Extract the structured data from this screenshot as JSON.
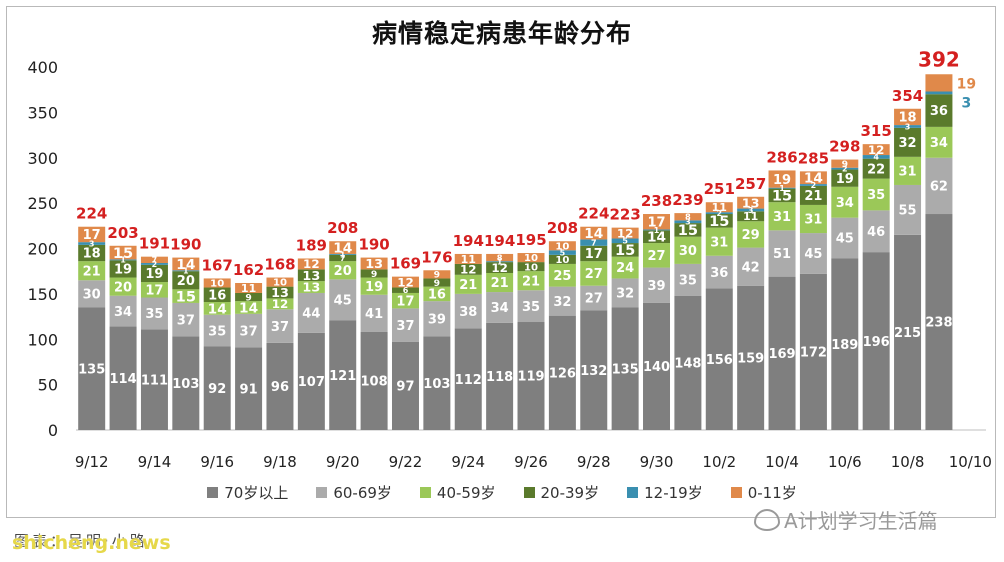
{
  "chart_data": {
    "type": "bar",
    "stacked": true,
    "title": "病情稳定病患年龄分布",
    "categories": [
      "9/12",
      "9/13",
      "9/14",
      "9/15",
      "9/16",
      "9/17",
      "9/18",
      "9/19",
      "9/20",
      "9/21",
      "9/22",
      "9/23",
      "9/24",
      "9/25",
      "9/26",
      "9/27",
      "9/28",
      "9/29",
      "9/30",
      "10/1",
      "10/2",
      "10/3",
      "10/4",
      "10/5",
      "10/6",
      "10/7",
      "10/8",
      "10/9",
      "10/10"
    ],
    "x_tick_labels": [
      "9/12",
      "9/14",
      "9/16",
      "9/18",
      "9/20",
      "9/22",
      "9/24",
      "9/26",
      "9/28",
      "9/30",
      "10/2",
      "10/4",
      "10/6",
      "10/8",
      "10/10"
    ],
    "ylim": [
      0,
      400
    ],
    "yticks": [
      0,
      50,
      100,
      150,
      200,
      250,
      300,
      350,
      400
    ],
    "grid": false,
    "legend_position": "bottom",
    "totals": [
      224,
      203,
      191,
      190,
      167,
      162,
      168,
      189,
      208,
      190,
      169,
      176,
      194,
      194,
      195,
      208,
      224,
      223,
      238,
      239,
      251,
      257,
      286,
      285,
      298,
      315,
      354,
      392,
      null
    ],
    "series": [
      {
        "name": "70岁以上",
        "color": "#7f7f7f",
        "label_color": "#ffffff",
        "values": [
          135,
          114,
          111,
          103,
          92,
          91,
          96,
          107,
          121,
          108,
          97,
          103,
          112,
          118,
          119,
          126,
          132,
          135,
          140,
          148,
          156,
          159,
          169,
          172,
          189,
          196,
          215,
          238,
          null
        ]
      },
      {
        "name": "60-69岁",
        "color": "#ababab",
        "label_color": "#ffffff",
        "values": [
          30,
          34,
          35,
          37,
          35,
          37,
          37,
          44,
          45,
          41,
          37,
          39,
          38,
          34,
          35,
          32,
          27,
          32,
          39,
          35,
          36,
          42,
          51,
          45,
          45,
          46,
          55,
          62,
          null
        ]
      },
      {
        "name": "40-59岁",
        "color": "#9bc858",
        "label_color": "#ffffff",
        "values": [
          21,
          20,
          17,
          15,
          14,
          14,
          12,
          13,
          20,
          19,
          17,
          16,
          21,
          21,
          21,
          25,
          27,
          24,
          27,
          30,
          31,
          29,
          31,
          31,
          34,
          35,
          31,
          34,
          null
        ]
      },
      {
        "name": "20-39岁",
        "color": "#5a7a2c",
        "label_color": "#ffffff",
        "values": [
          18,
          19,
          19,
          20,
          16,
          9,
          13,
          13,
          7,
          9,
          6,
          9,
          12,
          12,
          10,
          10,
          17,
          15,
          14,
          15,
          15,
          11,
          15,
          21,
          19,
          22,
          32,
          36,
          null
        ]
      },
      {
        "name": "12-19岁",
        "color": "#3a8fb0",
        "label_color": "#ffffff",
        "values": [
          3,
          1,
          2,
          1,
          0,
          0,
          0,
          0,
          1,
          0,
          0,
          0,
          0,
          1,
          0,
          5,
          7,
          5,
          1,
          3,
          2,
          3,
          1,
          2,
          2,
          4,
          3,
          3,
          null
        ]
      },
      {
        "name": "0-11岁",
        "color": "#e0894a",
        "label_color": "#ffffff",
        "values": [
          17,
          15,
          7,
          14,
          10,
          11,
          10,
          12,
          14,
          13,
          12,
          9,
          11,
          8,
          10,
          10,
          14,
          12,
          17,
          8,
          11,
          13,
          19,
          14,
          9,
          12,
          18,
          19,
          null
        ]
      }
    ]
  },
  "watermark": "A计划学习生活篇",
  "source_label": "图表：吴明·小路",
  "site_label": "shicheng.news"
}
